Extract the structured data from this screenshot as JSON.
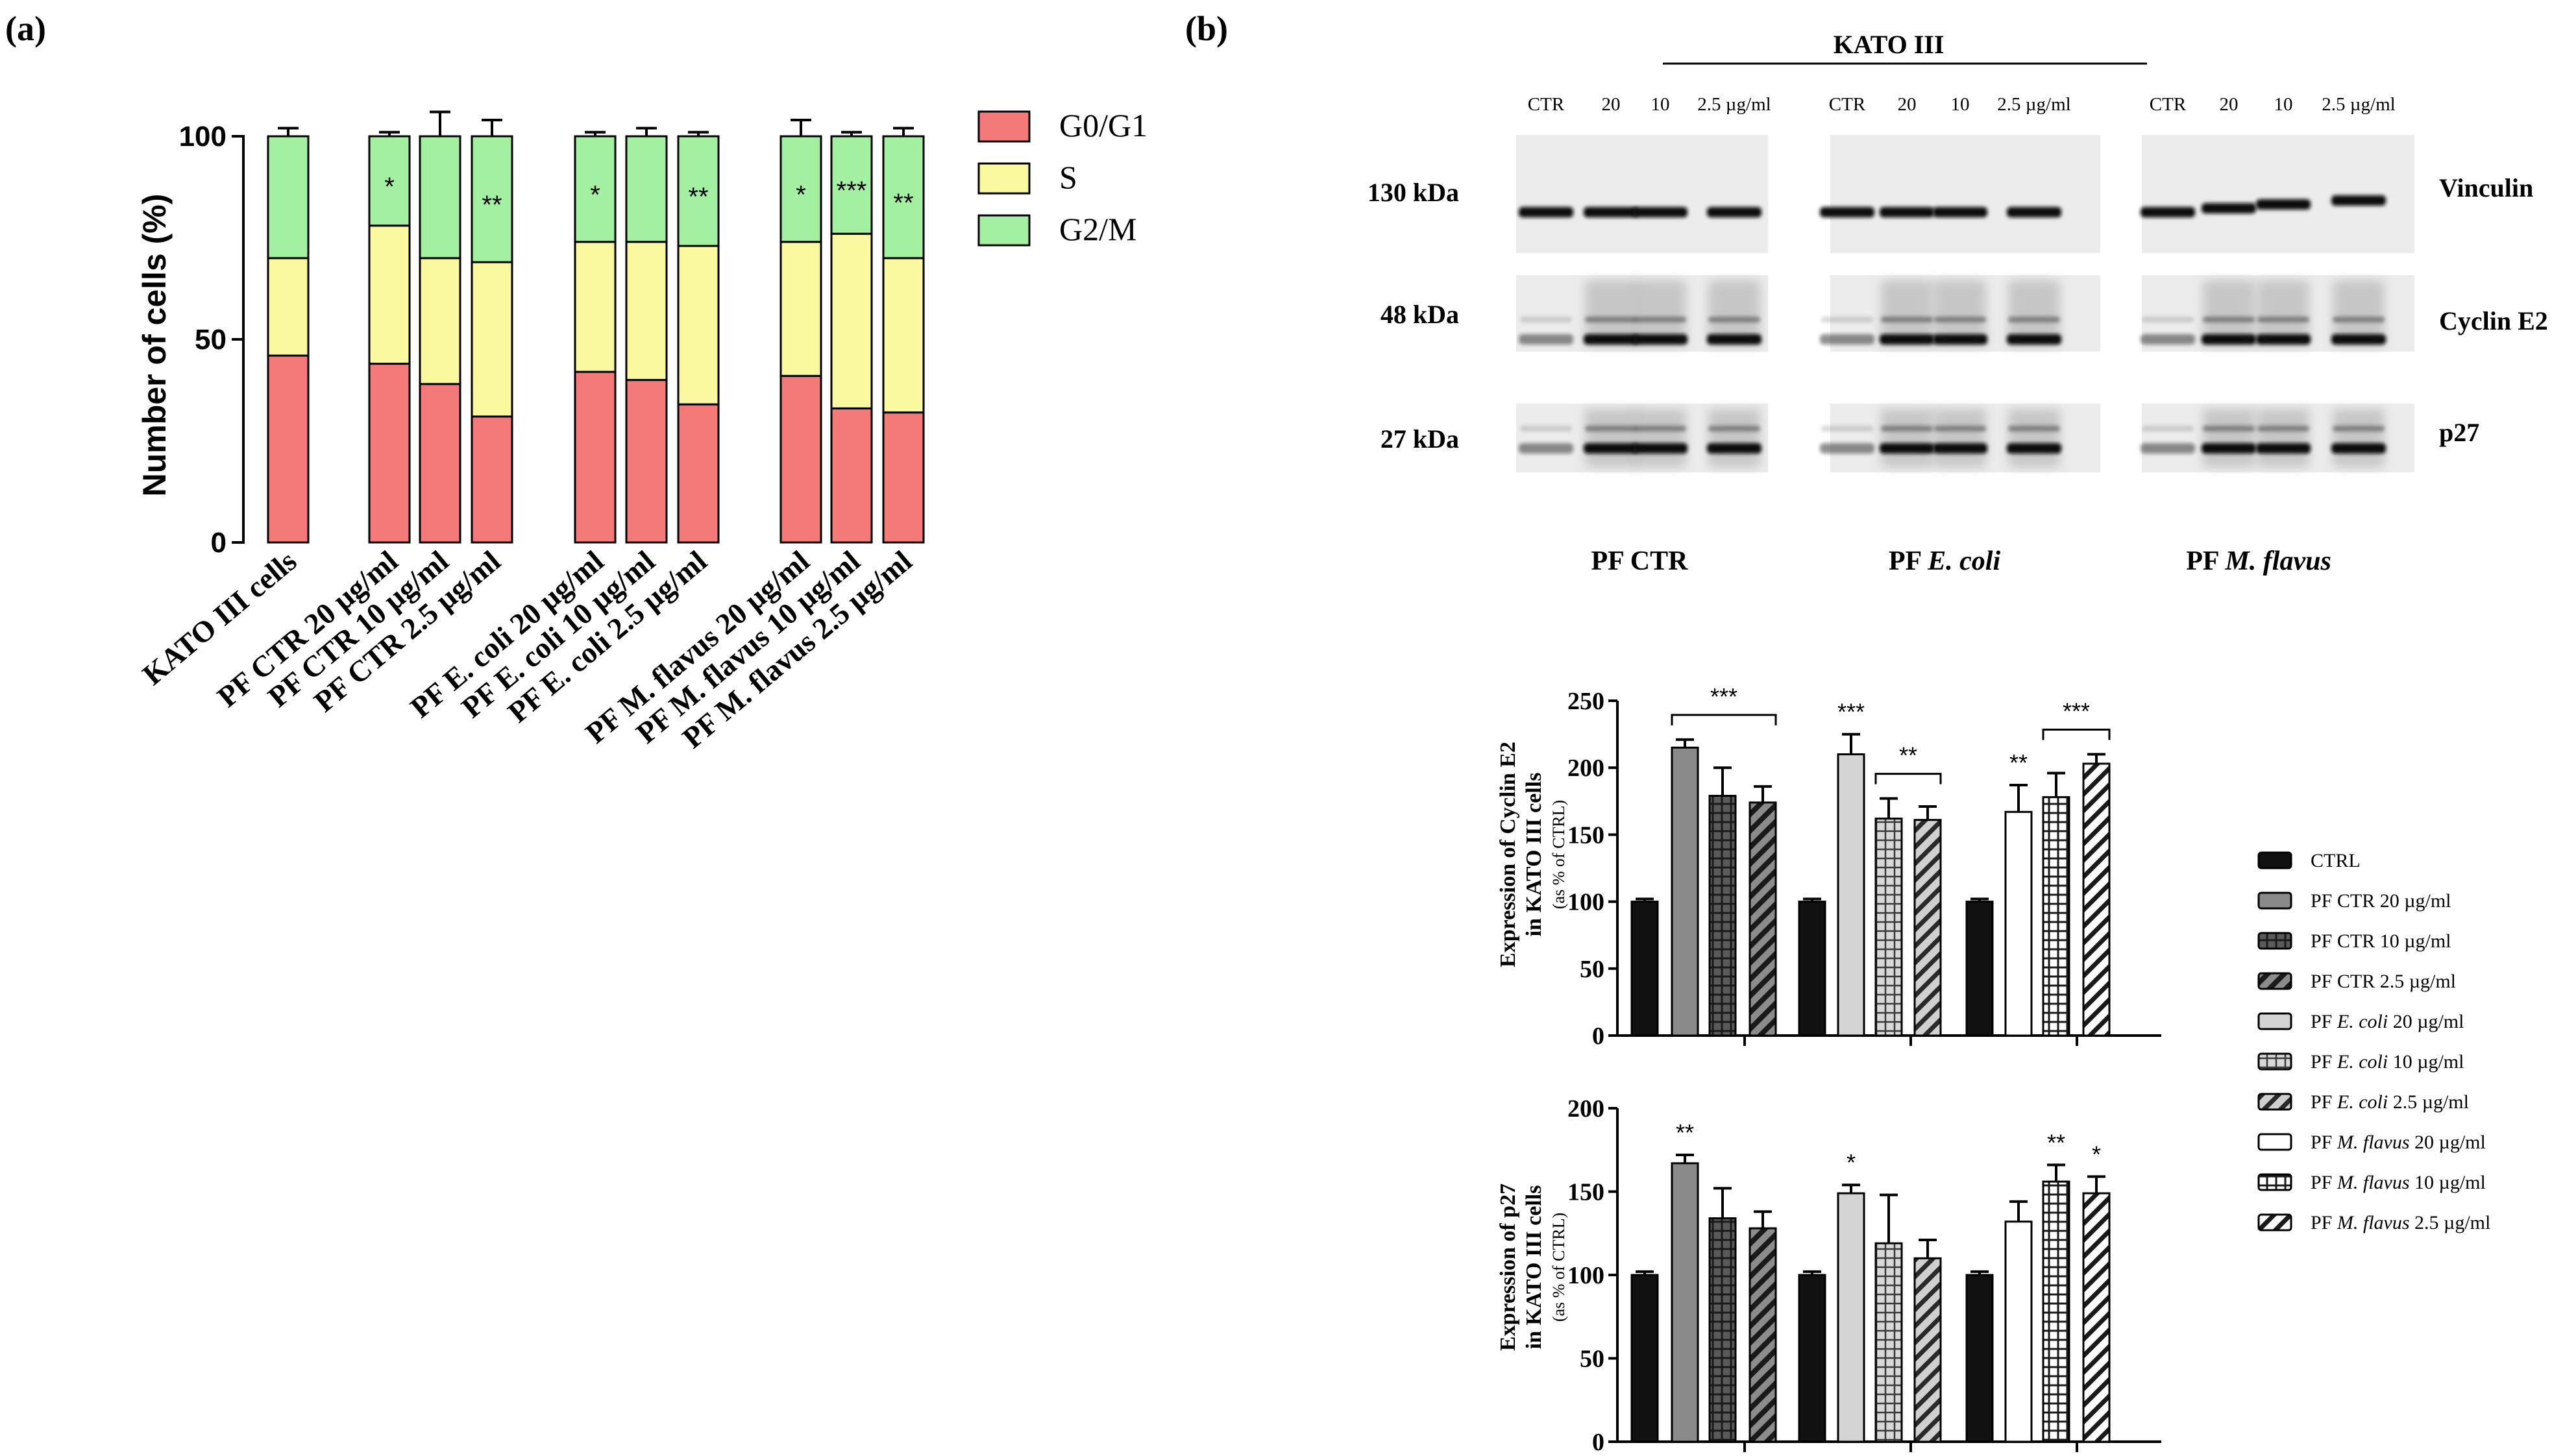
{
  "panel_a_label": "(a)",
  "panel_b_label": "(b)",
  "chart_data": [
    {
      "type": "bar",
      "stacked": true,
      "ylabel": "Number of cells (%)",
      "ylim": [
        0,
        100
      ],
      "yticks": [
        0,
        50,
        100
      ],
      "categories": [
        "KATO III cells",
        "PF CTR 20 µg/ml",
        "PF CTR 10 µg/ml",
        "PF CTR 2.5 µg/ml",
        "PF E. coli 20 µg/ml",
        "PF E. coli 10 µg/ml",
        "PF E. coli 2.5 µg/ml",
        "PF M. flavus 20 µg/ml",
        "PF M. flavus 10 µg/ml",
        "PF M. flavus 2.5 µg/ml"
      ],
      "series": [
        {
          "name": "G0/G1",
          "color": "#f47a7a",
          "values": [
            46,
            44,
            39,
            31,
            42,
            40,
            34,
            41,
            33,
            32
          ],
          "errors": [
            2,
            4,
            5,
            4,
            1,
            2,
            2,
            7,
            2,
            2
          ]
        },
        {
          "name": "S",
          "color": "#fbf9a0",
          "values": [
            24,
            34,
            31,
            38,
            32,
            34,
            39,
            33,
            43,
            38
          ],
          "errors": [
            3,
            4,
            2,
            1,
            2,
            3,
            3,
            3,
            2,
            4
          ]
        },
        {
          "name": "G2/M",
          "color": "#a3f0a3",
          "values": [
            30,
            22,
            30,
            31,
            26,
            26,
            27,
            26,
            24,
            30
          ],
          "errors": [
            2,
            1,
            6,
            4,
            1,
            2,
            1,
            4,
            1,
            2
          ]
        }
      ],
      "significance": [
        "",
        "*",
        "",
        "**",
        "*",
        "",
        "**",
        "*",
        "***",
        "**"
      ],
      "legend": "right"
    },
    {
      "type": "bar",
      "ylabel": "Expression of Cyclin E2",
      "ylabel2": "in KATO III cells",
      "ylabel3": "(as % of CTRL)",
      "ylim": [
        0,
        250
      ],
      "yticks": [
        0,
        50,
        100,
        150,
        200,
        250
      ],
      "groups": [
        {
          "values": [
            100,
            215,
            179,
            174
          ],
          "errors": [
            2,
            6,
            21,
            12
          ]
        },
        {
          "values": [
            100,
            210,
            162,
            161
          ],
          "errors": [
            2,
            15,
            15,
            10
          ]
        },
        {
          "values": [
            100,
            167,
            178,
            203
          ],
          "errors": [
            2,
            20,
            18,
            7
          ]
        }
      ],
      "annotations": [
        {
          "text": "***",
          "group": 0,
          "bracket": [
            1,
            3
          ]
        },
        {
          "text": "***",
          "group": 1,
          "over": 1
        },
        {
          "text": "**",
          "group": 1,
          "bracket": [
            2,
            3
          ]
        },
        {
          "text": "**",
          "group": 2,
          "over": 1
        },
        {
          "text": "***",
          "group": 2,
          "bracket": [
            2,
            3
          ]
        }
      ]
    },
    {
      "type": "bar",
      "ylabel": "Expression of p27",
      "ylabel2": "in KATO III cells",
      "ylabel3": "(as % of CTRL)",
      "ylim": [
        0,
        200
      ],
      "yticks": [
        0,
        50,
        100,
        150,
        200
      ],
      "groups": [
        {
          "values": [
            100,
            167,
            134,
            128
          ],
          "errors": [
            2,
            5,
            18,
            10
          ]
        },
        {
          "values": [
            100,
            149,
            119,
            110
          ],
          "errors": [
            2,
            5,
            29,
            11
          ]
        },
        {
          "values": [
            100,
            132,
            156,
            149
          ],
          "errors": [
            2,
            12,
            10,
            10
          ]
        }
      ],
      "annotations": [
        {
          "text": "**",
          "group": 0,
          "over": 1
        },
        {
          "text": "*",
          "group": 1,
          "over": 1
        },
        {
          "text": "**",
          "group": 2,
          "over": 2
        },
        {
          "text": "*",
          "group": 2,
          "over": 3
        }
      ]
    }
  ],
  "legend_b": [
    {
      "pre": "CTRL",
      "ital": "",
      "post": "",
      "pattern": "solid-black"
    },
    {
      "pre": "PF CTR 20 µg/ml",
      "ital": "",
      "post": "",
      "pattern": "solid-gray"
    },
    {
      "pre": "PF CTR 10 µg/ml",
      "ital": "",
      "post": "",
      "pattern": "grid-dark"
    },
    {
      "pre": "PF CTR 2.5 µg/ml",
      "ital": "",
      "post": "",
      "pattern": "diag-dark"
    },
    {
      "pre": "PF ",
      "ital": "E. coli",
      "post": " 20 µg/ml",
      "pattern": "solid-light"
    },
    {
      "pre": "PF ",
      "ital": "E. coli",
      "post": " 10 µg/ml",
      "pattern": "grid-light"
    },
    {
      "pre": "PF ",
      "ital": "E. coli",
      "post": " 2.5 µg/ml",
      "pattern": "diag-light"
    },
    {
      "pre": "PF ",
      "ital": "M. flavus",
      "post": " 20 µg/ml",
      "pattern": "solid-white"
    },
    {
      "pre": "PF ",
      "ital": "M. flavus",
      "post": " 10 µg/ml",
      "pattern": "grid-white"
    },
    {
      "pre": "PF ",
      "ital": "M. flavus",
      "post": " 2.5 µg/ml",
      "pattern": "diag-white"
    }
  ],
  "blot": {
    "title": "KATO III",
    "lanes": [
      "CTR",
      "20",
      "10",
      "2.5 µg/ml",
      "CTR",
      "20",
      "10",
      "2.5 µg/ml",
      "CTR",
      "20",
      "10",
      "2.5 µg/ml"
    ],
    "rows": [
      {
        "kda": "130 kDa",
        "protein": "Vinculin"
      },
      {
        "kda": "48 kDa",
        "protein": "Cyclin E2"
      },
      {
        "kda": "27 kDa",
        "protein": "p27"
      }
    ],
    "groups": [
      {
        "pre": "PF CTR",
        "ital": ""
      },
      {
        "pre": "PF ",
        "ital": "E. coli"
      },
      {
        "pre": "PF ",
        "ital": "M. flavus"
      }
    ]
  }
}
